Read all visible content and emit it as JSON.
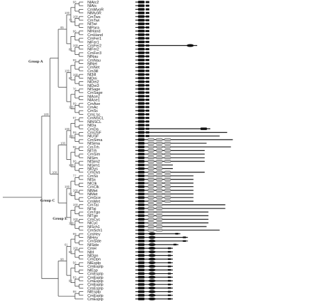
{
  "figure": {
    "groups": [
      "Group A",
      "Group C",
      "Group E"
    ]
  },
  "genes": [
    {
      "label": "NlAtc2",
      "len": 0.05,
      "grey": 0
    },
    {
      "label": "NlAtc",
      "len": 0.05,
      "grey": 0
    },
    {
      "label": "CmMyoR",
      "len": 0.05,
      "grey": 0
    },
    {
      "label": "NlMyoR",
      "len": 0.05,
      "grey": 0
    },
    {
      "label": "CmTws",
      "len": 0.06,
      "grey": 0
    },
    {
      "label": "CmTwi",
      "len": 0.06,
      "grey": 0
    },
    {
      "label": "NlTwi",
      "len": 0.06,
      "grey": 0
    },
    {
      "label": "NlPara",
      "len": 0.06,
      "grey": 0
    },
    {
      "label": "NlHand",
      "len": 0.06,
      "grey": 0
    },
    {
      "label": "CmHand",
      "len": 0.06,
      "grey": 0
    },
    {
      "label": "CmFer1",
      "len": 0.06,
      "grey": 0
    },
    {
      "label": "NlFer1",
      "len": 0.06,
      "grey": 0
    },
    {
      "label": "CmFer2",
      "len": 0.33,
      "grey": 0
    },
    {
      "label": "NlFer2",
      "len": 0.06,
      "grey": 0
    },
    {
      "label": "CmFer3",
      "len": 0.06,
      "grey": 0
    },
    {
      "label": "NlNau",
      "len": 0.06,
      "grey": 0
    },
    {
      "label": "CmNau",
      "len": 0.06,
      "grey": 0
    },
    {
      "label": "NlNet",
      "len": 0.06,
      "grey": 0
    },
    {
      "label": "CmNet",
      "len": 0.06,
      "grey": 0
    },
    {
      "label": "Cm3ill",
      "len": 0.06,
      "grey": 0
    },
    {
      "label": "Nl3ill",
      "len": 0.06,
      "grey": 0
    },
    {
      "label": "NlDei",
      "len": 0.06,
      "grey": 0
    },
    {
      "label": "NlDei2",
      "len": 0.06,
      "grey": 0
    },
    {
      "label": "NlDei3",
      "len": 0.06,
      "grey": 0
    },
    {
      "label": "NlSage",
      "len": 0.06,
      "grey": 0
    },
    {
      "label": "CmSage",
      "len": 0.06,
      "grey": 0
    },
    {
      "label": "NlAse2",
      "len": 0.06,
      "grey": 0
    },
    {
      "label": "NlAse1",
      "len": 0.06,
      "grey": 0
    },
    {
      "label": "CmAse",
      "len": 0.06,
      "grey": 0
    },
    {
      "label": "CmAc",
      "len": 0.06,
      "grey": 0
    },
    {
      "label": "CmSc",
      "len": 0.06,
      "grey": 0
    },
    {
      "label": "CmL'sc",
      "len": 0.06,
      "grey": 0
    },
    {
      "label": "CmNSCL",
      "len": 0.06,
      "grey": 0
    },
    {
      "label": "NlNSCL",
      "len": 0.06,
      "grey": 0
    },
    {
      "label": "NlDa",
      "len": 0.06,
      "grey": 0
    },
    {
      "label": "CmDa",
      "len": 0.4,
      "grey": 0
    },
    {
      "label": "CmUSF",
      "len": 0.49,
      "grey": 0
    },
    {
      "label": "NlUSF",
      "len": 0.45,
      "grey": 0
    },
    {
      "label": "CmSima",
      "len": 0.52,
      "grey": 3
    },
    {
      "label": "NlSima",
      "len": 0.38,
      "grey": 3
    },
    {
      "label": "CmTrh",
      "len": 0.51,
      "grey": 3
    },
    {
      "label": "NlTrh",
      "len": 0.37,
      "grey": 3
    },
    {
      "label": "CmSim",
      "len": 0.37,
      "grey": 3
    },
    {
      "label": "NlSim",
      "len": 0.37,
      "grey": 3
    },
    {
      "label": "NlSim2",
      "len": 0.37,
      "grey": 3
    },
    {
      "label": "NlSim1",
      "len": 0.2,
      "grey": 2
    },
    {
      "label": "NlDys",
      "len": 0.2,
      "grey": 2
    },
    {
      "label": "CmDys",
      "len": 0.37,
      "grey": 3
    },
    {
      "label": "CmSs",
      "len": 0.31,
      "grey": 3
    },
    {
      "label": "NlSs",
      "len": 0.31,
      "grey": 3
    },
    {
      "label": "NlClk",
      "len": 0.31,
      "grey": 3
    },
    {
      "label": "CmClk",
      "len": 0.31,
      "grey": 3
    },
    {
      "label": "NlMet",
      "len": 0.31,
      "grey": 3
    },
    {
      "label": "NlMet",
      "len": 0.31,
      "grey": 3
    },
    {
      "label": "CmGce",
      "len": 0.31,
      "grey": 3
    },
    {
      "label": "CmMet",
      "len": 0.31,
      "grey": 3
    },
    {
      "label": "CmTai",
      "len": 0.48,
      "grey": 2
    },
    {
      "label": "NlTai",
      "len": 0.48,
      "grey": 2
    },
    {
      "label": "CmTgo",
      "len": 0.39,
      "grey": 2
    },
    {
      "label": "NlTgo",
      "len": 0.39,
      "grey": 2
    },
    {
      "label": "CmCyc",
      "len": 0.39,
      "grey": 2
    },
    {
      "label": "NlCyc",
      "len": 0.39,
      "grey": 2
    },
    {
      "label": "NlSch1",
      "len": 0.38,
      "grey": 2
    },
    {
      "label": "CmSch1",
      "len": 0.45,
      "grey": 2
    },
    {
      "label": "CmHey",
      "len": 0.24,
      "grey": 0
    },
    {
      "label": "NlHey",
      "len": 0.28,
      "grey": 0
    },
    {
      "label": "CmSide",
      "len": 0.28,
      "grey": 0
    },
    {
      "label": "NlSide",
      "len": 0.23,
      "grey": 0
    },
    {
      "label": "CmH",
      "len": 0.2,
      "grey": 0
    },
    {
      "label": "NlH",
      "len": 0.2,
      "grey": 0
    },
    {
      "label": "NlDpn",
      "len": 0.2,
      "grey": 0
    },
    {
      "label": "CmDpn",
      "len": 0.2,
      "grey": 0
    },
    {
      "label": "NlEsplp",
      "len": 0.2,
      "grey": 0
    },
    {
      "label": "CmEsplp",
      "len": 0.2,
      "grey": 0
    },
    {
      "label": "NlEsp",
      "len": 0.2,
      "grey": 0
    },
    {
      "label": "CmEsplp",
      "len": 0.2,
      "grey": 0
    },
    {
      "label": "CmEsplp",
      "len": 0.2,
      "grey": 0
    },
    {
      "label": "CmEsplp",
      "len": 0.2,
      "grey": 0
    },
    {
      "label": "CmEsplp",
      "len": 0.2,
      "grey": 0
    },
    {
      "label": "CmEsplp",
      "len": 0.2,
      "grey": 0
    },
    {
      "label": "NlEsplp",
      "len": 0.2,
      "grey": 0
    },
    {
      "label": "CmEsplp",
      "len": 0.2,
      "grey": 0
    },
    {
      "label": "CmEsplp",
      "len": 0.2,
      "grey": 0
    }
  ],
  "bootstrap": [
    "98",
    "100",
    "96",
    "100",
    "99",
    "100",
    "76",
    "99",
    "97",
    "99",
    "98",
    "98",
    "77",
    "100",
    "100",
    "100",
    "99",
    "100",
    "56",
    "83",
    "98",
    "70",
    "82",
    "67",
    "100",
    "100",
    "100",
    "98",
    "100",
    "60",
    "90",
    "100",
    "100",
    "100",
    "100",
    "61",
    "65",
    "100",
    "98",
    "100",
    "100",
    "99",
    "97",
    "94",
    "92",
    "96",
    "64",
    "77",
    "57",
    "56"
  ],
  "colors": {
    "line": "#4a4a4a",
    "domain": "#111111",
    "grey_domain": "#bdbdbd"
  }
}
